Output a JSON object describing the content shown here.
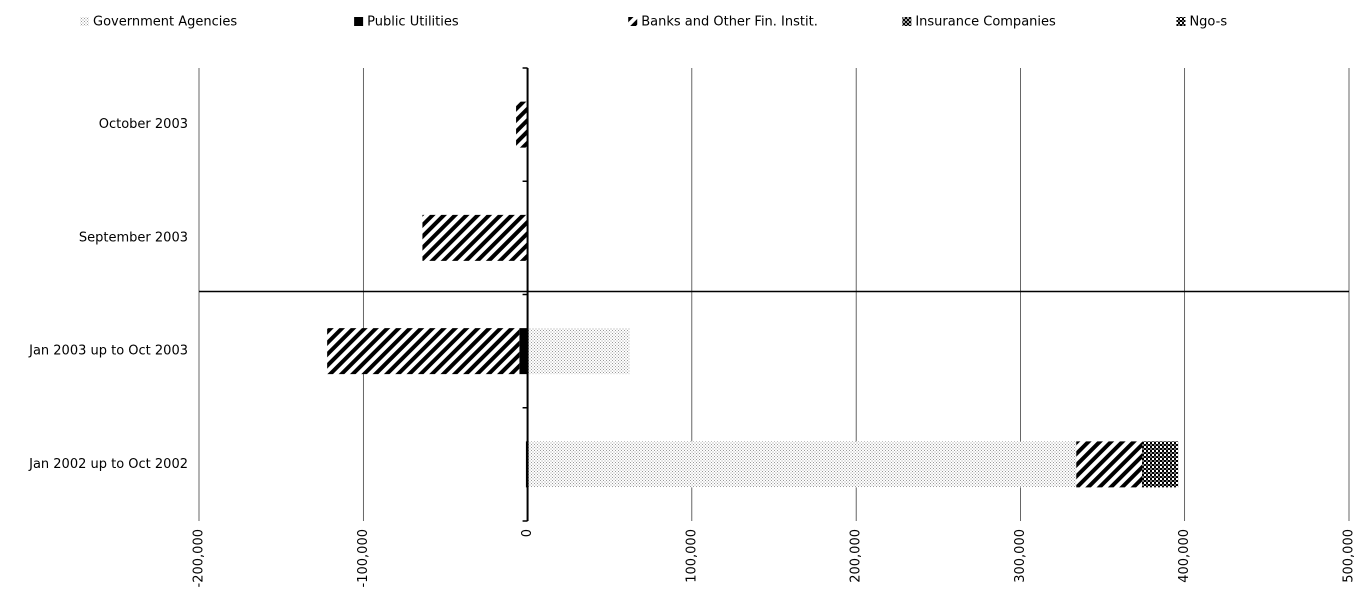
{
  "chart_data": {
    "type": "stacked-barh",
    "categories": [
      "October 2003",
      "September 2003",
      "Jan 2003 up to Oct 2003",
      "Jan 2002 up to Oct 2002"
    ],
    "series": [
      {
        "name": "Government Agencies",
        "color": "#9a9a9a",
        "pattern": "dots",
        "values": [
          0,
          0,
          62000,
          334000
        ]
      },
      {
        "name": "Public Utilities",
        "color": "#000000",
        "pattern": "solid",
        "values": [
          0,
          0,
          -5000,
          -1000
        ]
      },
      {
        "name": "Banks and Other Fin. Instit.",
        "color": "#000000",
        "pattern": "diagonal",
        "values": [
          -7000,
          -64000,
          -117000,
          40000
        ]
      },
      {
        "name": "Insurance Companies",
        "color": "#000000",
        "pattern": "cross",
        "values": [
          0,
          0,
          0,
          0
        ]
      },
      {
        "name": "Ngo-s",
        "color": "#000000",
        "pattern": "checker",
        "values": [
          0,
          0,
          0,
          22000
        ]
      }
    ],
    "xlim": [
      -200000,
      500000
    ],
    "xticks": [
      {
        "value": -200000,
        "label": "-200,000"
      },
      {
        "value": -100000,
        "label": "-100,000"
      },
      0,
      {
        "value": 100000,
        "label": "100,000"
      },
      {
        "value": 200000,
        "label": "200,000"
      },
      {
        "value": 300000,
        "label": "300,000"
      },
      {
        "value": 400000,
        "label": "400,000"
      },
      {
        "value": 500000,
        "label": "500,000"
      }
    ],
    "grid": true,
    "legend": "top"
  }
}
